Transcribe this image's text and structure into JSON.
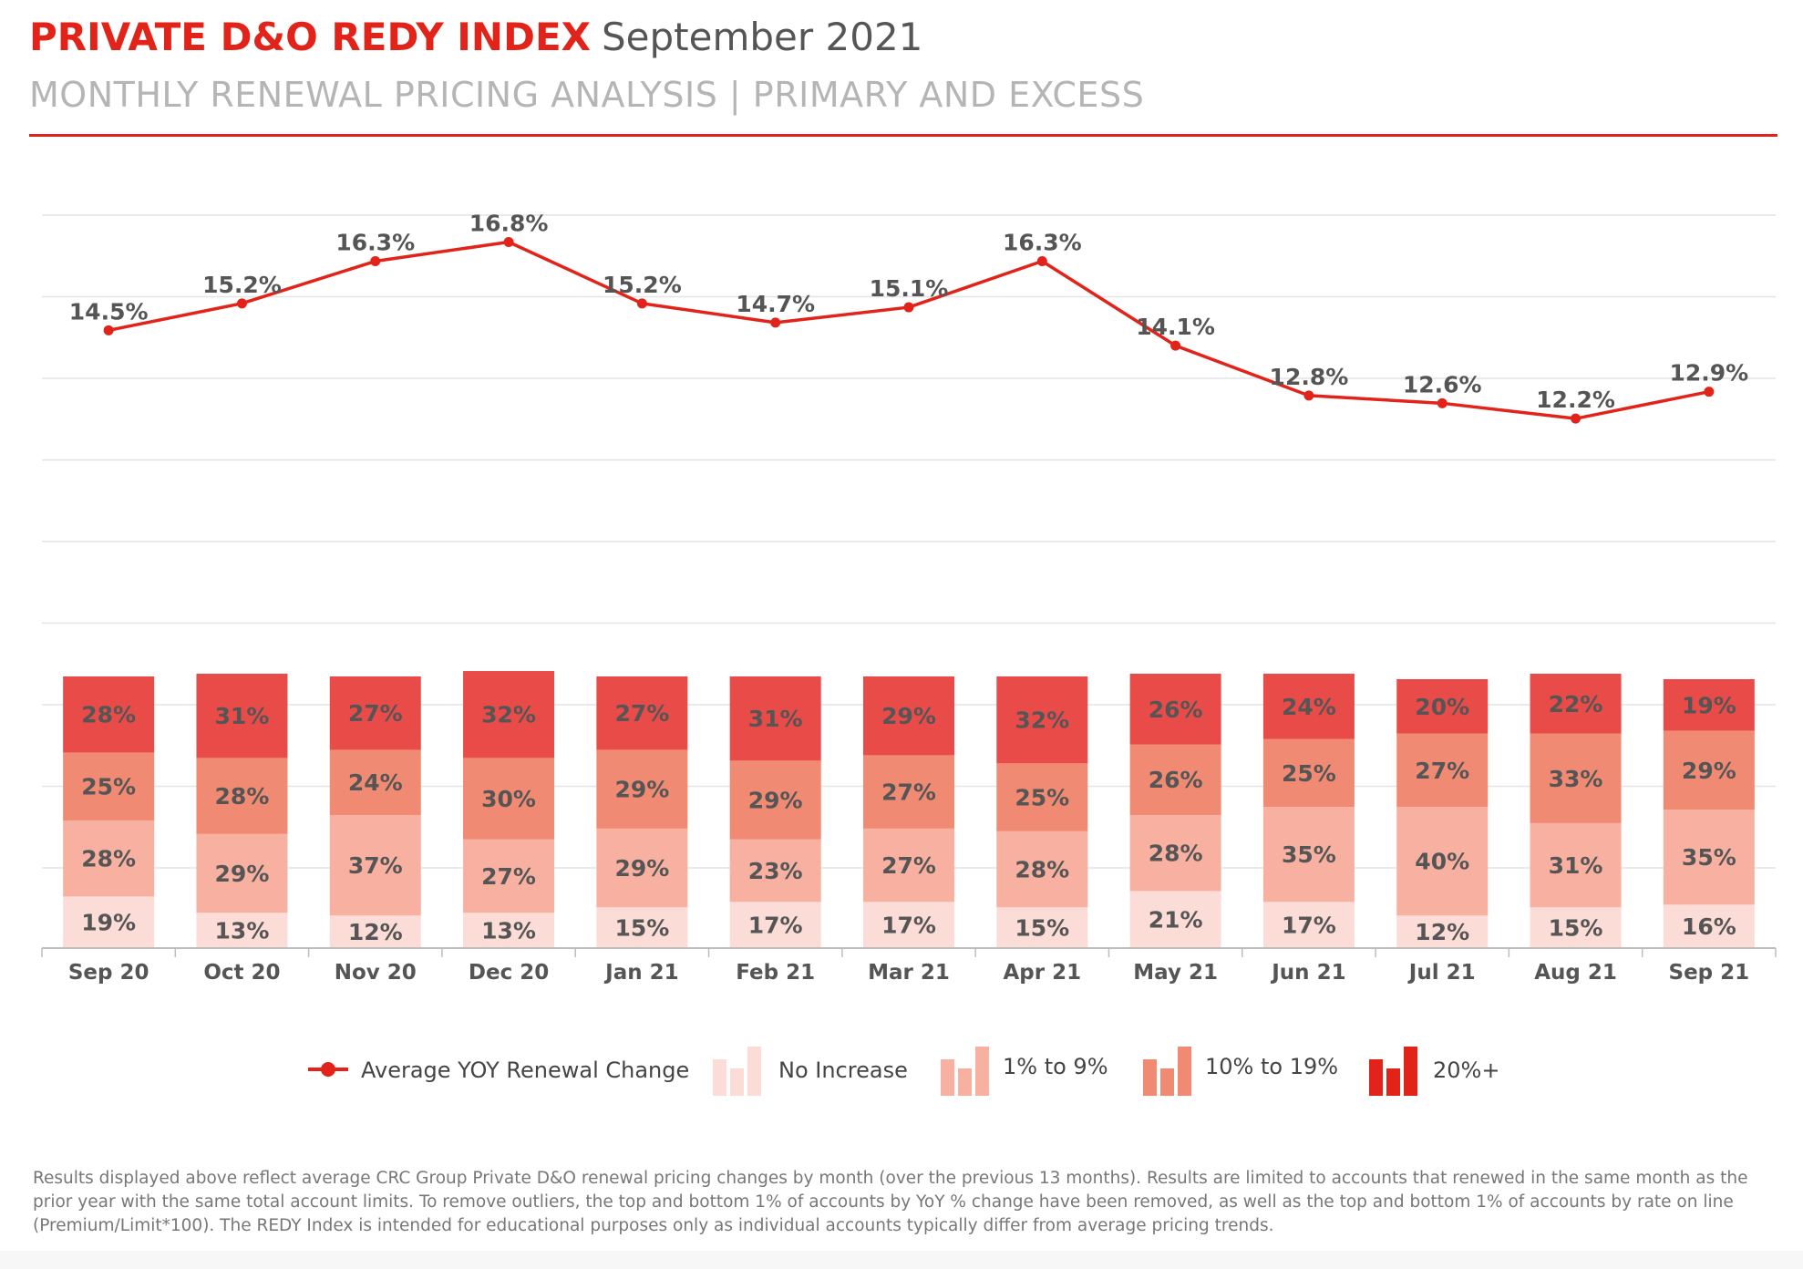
{
  "header": {
    "brand": "PRIVATE D&O REDY INDEX",
    "period": "September 2021",
    "subtitle": "MONTHLY RENEWAL PRICING ANALYSIS | PRIMARY AND EXCESS"
  },
  "colors": {
    "accent": "#e2231a",
    "no_increase": "#fcdcd6",
    "one_to_nine": "#f8b1a1",
    "ten_to_nineteen": "#f08a73",
    "twenty_plus": "#e94b49",
    "line": "#e2231a"
  },
  "chart_data": {
    "type": "bar",
    "stacked": true,
    "categories": [
      "Sep 20",
      "Oct 20",
      "Nov 20",
      "Dec 20",
      "Jan 21",
      "Feb 21",
      "Mar 21",
      "Apr 21",
      "May 21",
      "Jun 21",
      "Jul 21",
      "Aug 21",
      "Sep 21"
    ],
    "series": [
      {
        "name": "No Increase",
        "values": [
          19,
          13,
          12,
          13,
          15,
          17,
          17,
          15,
          21,
          17,
          12,
          15,
          16
        ],
        "labels": [
          "19%",
          "13%",
          "12%",
          "13%",
          "15%",
          "17%",
          "17%",
          "15%",
          "21%",
          "17%",
          "12%",
          "15%",
          "16%"
        ]
      },
      {
        "name": "1% to 9%",
        "values": [
          28,
          29,
          37,
          27,
          29,
          23,
          27,
          28,
          28,
          35,
          40,
          31,
          35
        ],
        "labels": [
          "28%",
          "29%",
          "37%",
          "27%",
          "29%",
          "23%",
          "27%",
          "28%",
          "28%",
          "35%",
          "40%",
          "31%",
          "35%"
        ]
      },
      {
        "name": "10% to 19%",
        "values": [
          25,
          28,
          24,
          30,
          29,
          29,
          27,
          25,
          26,
          25,
          27,
          33,
          29
        ],
        "labels": [
          "25%",
          "28%",
          "24%",
          "30%",
          "29%",
          "29%",
          "27%",
          "25%",
          "26%",
          "25%",
          "27%",
          "33%",
          "29%"
        ]
      },
      {
        "name": "20%+",
        "values": [
          28,
          31,
          27,
          32,
          27,
          31,
          29,
          32,
          26,
          24,
          20,
          22,
          19
        ],
        "labels": [
          "28%",
          "31%",
          "27%",
          "32%",
          "27%",
          "31%",
          "29%",
          "32%",
          "26%",
          "24%",
          "20%",
          "22%",
          "19%"
        ]
      }
    ],
    "line_series": {
      "name": "Average YOY Renewal Change",
      "type": "line",
      "values": [
        14.5,
        15.2,
        16.3,
        16.8,
        15.2,
        14.7,
        15.1,
        16.3,
        14.1,
        12.8,
        12.6,
        12.2,
        12.9
      ],
      "labels": [
        "14.5%",
        "15.2%",
        "16.3%",
        "16.8%",
        "15.2%",
        "14.7%",
        "15.1%",
        "16.3%",
        "14.1%",
        "12.8%",
        "12.6%",
        "12.2%",
        "12.9%"
      ]
    },
    "grid": true,
    "legend_position": "bottom"
  },
  "legend": {
    "line": "Average YOY Renewal Change",
    "no_increase": "No Increase",
    "one_to_nine": "1% to 9%",
    "ten_to_nineteen": "10% to 19%",
    "twenty_plus": "20%+"
  },
  "footnote": "Results displayed above reflect average CRC Group Private D&O renewal pricing changes by month (over the previous 13 months). Results are limited to accounts that renewed in the same month as the prior year with the same total account limits. To remove outliers, the top and bottom 1% of accounts by YoY % change have been removed, as well as the top and bottom 1% of accounts by rate on line (Premium/Limit*100). The REDY Index is intended for educational purposes only as individual accounts typically differ from average pricing trends."
}
